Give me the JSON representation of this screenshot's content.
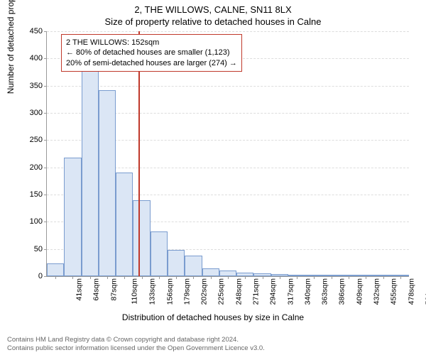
{
  "title_main": "2, THE WILLOWS, CALNE, SN11 8LX",
  "title_sub": "Size of property relative to detached houses in Calne",
  "chart": {
    "type": "histogram",
    "xlabel": "Distribution of detached houses by size in Calne",
    "ylabel": "Number of detached properties",
    "ylim": [
      0,
      450
    ],
    "ytick_step": 50,
    "x_start": 41,
    "x_step": 23,
    "x_nticks": 21,
    "x_unit": "sqm",
    "bar_fill": "#dbe6f5",
    "bar_stroke": "#7a9ccf",
    "grid_color": "#dddddd",
    "axis_color": "#999999",
    "background_color": "#ffffff",
    "values": [
      24,
      218,
      380,
      342,
      190,
      140,
      82,
      48,
      38,
      14,
      10,
      6,
      5,
      4,
      3,
      2,
      2,
      0,
      1,
      1,
      0
    ],
    "reference_line": {
      "x_value": 152,
      "color": "#c0392b"
    },
    "annotation": {
      "border_color": "#c0392b",
      "lines": [
        "2 THE WILLOWS: 152sqm",
        "← 80% of detached houses are smaller (1,123)",
        "20% of semi-detached houses are larger (274) →"
      ]
    }
  },
  "footer": {
    "line1": "Contains HM Land Registry data © Crown copyright and database right 2024.",
    "line2": "Contains public sector information licensed under the Open Government Licence v3.0."
  },
  "fontsize": {
    "title": 13,
    "label": 12,
    "tick": 11,
    "annot": 11,
    "footer": 9.5
  }
}
